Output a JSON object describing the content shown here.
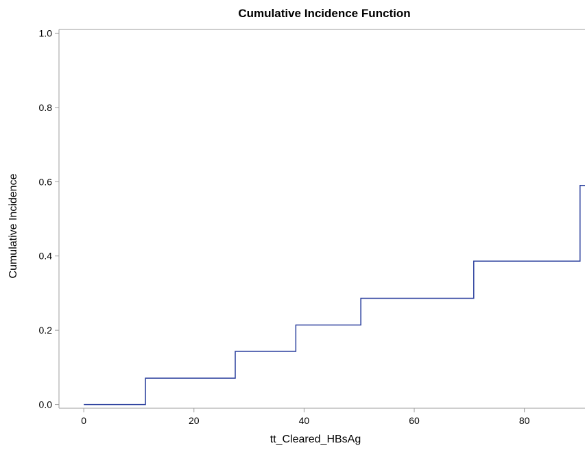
{
  "chart_data": {
    "type": "line",
    "step": true,
    "title": "Cumulative Incidence Function",
    "xlabel": "tt_Cleared_HBsAg",
    "ylabel": "Cumulative Incidence",
    "xlim": [
      -4.5,
      91
    ],
    "ylim": [
      -0.01,
      1.01
    ],
    "xticks": [
      0,
      20,
      40,
      60,
      80
    ],
    "xtick_labels": [
      "0",
      "20",
      "40",
      "60",
      "80"
    ],
    "yticks": [
      0.0,
      0.2,
      0.4,
      0.6,
      0.8,
      1.0
    ],
    "ytick_labels": [
      "0.0",
      "0.2",
      "0.4",
      "0.6",
      "0.8",
      "1.0"
    ],
    "grid": false,
    "line_color": "#2a3f9d",
    "series": [
      {
        "x": [
          0,
          11.2,
          27.5,
          38.5,
          50.3,
          70.8,
          90.1,
          91
        ],
        "y": [
          0.0,
          0.071,
          0.143,
          0.214,
          0.286,
          0.386,
          0.59,
          0.59
        ]
      }
    ]
  }
}
